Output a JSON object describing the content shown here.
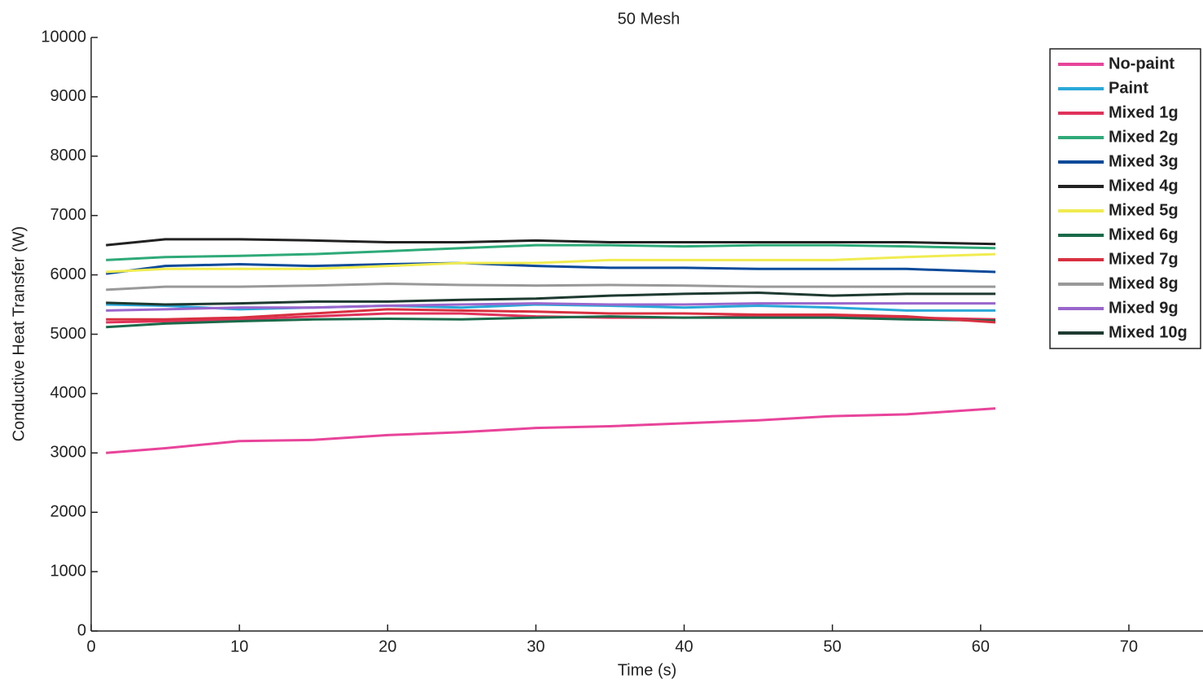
{
  "chart_data": {
    "type": "line",
    "title": "50 Mesh",
    "x_label": "Time (s)",
    "y_label": "Conductive Heat Transfer (W)",
    "x": [
      1,
      5,
      10,
      15,
      20,
      25,
      30,
      35,
      40,
      45,
      50,
      55,
      61
    ],
    "xlim": [
      0,
      75
    ],
    "xticks": [
      0,
      10,
      20,
      30,
      40,
      50,
      60,
      70
    ],
    "ylim": [
      0,
      10000
    ],
    "yticks": [
      0,
      1000,
      2000,
      3000,
      4000,
      5000,
      6000,
      7000,
      8000,
      9000,
      10000
    ],
    "legend": "top-right",
    "series": [
      {
        "name": "No-paint",
        "color": "#e8449a",
        "values": [
          3000,
          3080,
          3200,
          3220,
          3300,
          3350,
          3420,
          3450,
          3500,
          3550,
          3620,
          3650,
          3750
        ]
      },
      {
        "name": "Paint",
        "color": "#29a8d8",
        "values": [
          5500,
          5480,
          5420,
          5450,
          5480,
          5450,
          5500,
          5480,
          5450,
          5480,
          5450,
          5400,
          5400
        ]
      },
      {
        "name": "Mixed 1g",
        "color": "#e0325a",
        "values": [
          5200,
          5220,
          5250,
          5300,
          5350,
          5350,
          5300,
          5280,
          5280,
          5300,
          5300,
          5280,
          5250
        ]
      },
      {
        "name": "Mixed 2g",
        "color": "#2eaa78",
        "values": [
          6250,
          6300,
          6320,
          6350,
          6400,
          6450,
          6500,
          6500,
          6480,
          6500,
          6500,
          6480,
          6450
        ]
      },
      {
        "name": "Mixed 3g",
        "color": "#0a4a9a",
        "values": [
          6020,
          6150,
          6180,
          6150,
          6180,
          6200,
          6150,
          6120,
          6120,
          6100,
          6100,
          6100,
          6050
        ]
      },
      {
        "name": "Mixed 4g",
        "color": "#222222",
        "values": [
          6500,
          6600,
          6600,
          6580,
          6550,
          6550,
          6580,
          6550,
          6550,
          6550,
          6550,
          6550,
          6520
        ]
      },
      {
        "name": "Mixed 5g",
        "color": "#f0ec50",
        "values": [
          6050,
          6100,
          6100,
          6100,
          6150,
          6200,
          6200,
          6250,
          6250,
          6250,
          6250,
          6300,
          6350
        ]
      },
      {
        "name": "Mixed 6g",
        "color": "#1a6a4a",
        "values": [
          5120,
          5180,
          5220,
          5250,
          5260,
          5250,
          5280,
          5300,
          5280,
          5280,
          5280,
          5250,
          5230
        ]
      },
      {
        "name": "Mixed 7g",
        "color": "#d83040",
        "values": [
          5250,
          5250,
          5280,
          5350,
          5420,
          5400,
          5380,
          5350,
          5350,
          5330,
          5330,
          5300,
          5200
        ]
      },
      {
        "name": "Mixed 8g",
        "color": "#999999",
        "values": [
          5750,
          5800,
          5800,
          5820,
          5850,
          5830,
          5820,
          5830,
          5820,
          5800,
          5800,
          5800,
          5800
        ]
      },
      {
        "name": "Mixed 9g",
        "color": "#9966cc",
        "values": [
          5400,
          5420,
          5450,
          5450,
          5480,
          5500,
          5520,
          5500,
          5500,
          5520,
          5520,
          5520,
          5520
        ]
      },
      {
        "name": "Mixed 10g",
        "color": "#1e3a30",
        "values": [
          5530,
          5500,
          5520,
          5550,
          5550,
          5580,
          5600,
          5650,
          5680,
          5700,
          5650,
          5680,
          5680
        ]
      }
    ]
  }
}
